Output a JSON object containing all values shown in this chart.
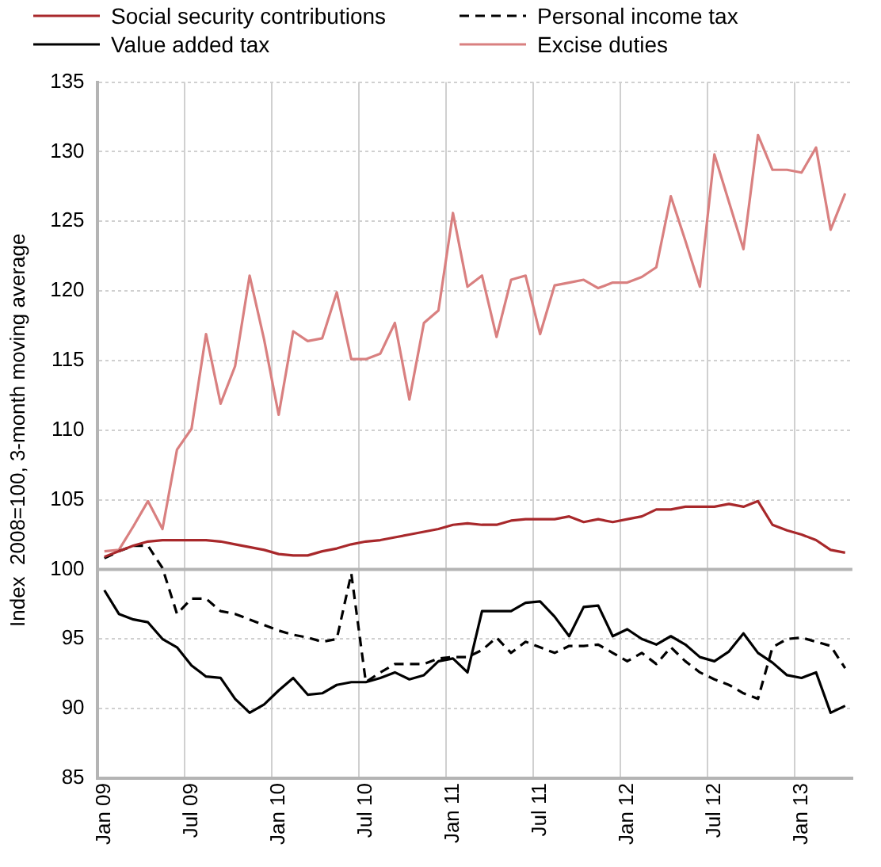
{
  "chart_data": {
    "type": "line",
    "ylabel": "Index  2008=100, 3-month moving average",
    "categories": [
      "Jan 09",
      null,
      null,
      null,
      null,
      null,
      "Jul 09",
      null,
      null,
      null,
      null,
      null,
      "Jan 10",
      null,
      null,
      null,
      null,
      null,
      "Jul 10",
      null,
      null,
      null,
      null,
      null,
      "Jan 11",
      null,
      null,
      null,
      null,
      null,
      "Jul 11",
      null,
      null,
      null,
      null,
      null,
      "Jan 12",
      null,
      null,
      null,
      null,
      null,
      "Jul 12",
      null,
      null,
      null,
      null,
      null,
      "Jan 13",
      null,
      null,
      null
    ],
    "series": [
      {
        "name": "Social security contributions",
        "color": "#a8282b",
        "values": [
          100.9,
          101.3,
          101.7,
          102.0,
          102.1,
          102.1,
          102.1,
          102.1,
          102.0,
          101.8,
          101.6,
          101.4,
          101.1,
          101.0,
          101.0,
          101.3,
          101.5,
          101.8,
          102.0,
          102.1,
          102.3,
          102.5,
          102.7,
          102.9,
          103.2,
          103.3,
          103.2,
          103.2,
          103.5,
          103.6,
          103.6,
          103.6,
          103.8,
          103.4,
          103.6,
          103.4,
          103.6,
          103.8,
          104.3,
          104.3,
          104.5,
          104.5,
          104.5,
          104.7,
          104.5,
          104.9,
          103.2,
          102.8,
          102.5,
          102.1,
          101.4,
          101.2
        ]
      },
      {
        "name": "Value added tax",
        "color": "#000000",
        "values": [
          98.5,
          96.8,
          96.4,
          96.2,
          95.0,
          94.4,
          93.1,
          92.3,
          92.2,
          90.7,
          89.7,
          90.3,
          91.3,
          92.2,
          91.0,
          91.1,
          91.7,
          91.9,
          91.9,
          92.2,
          92.6,
          92.1,
          92.4,
          93.4,
          93.6,
          92.6,
          97.0,
          97.0,
          97.0,
          97.6,
          97.7,
          96.6,
          95.2,
          97.3,
          97.4,
          95.2,
          95.7,
          95.0,
          94.6,
          95.2,
          94.6,
          93.7,
          93.4,
          94.1,
          95.4,
          94.0,
          93.3,
          92.4,
          92.2,
          92.6,
          89.7,
          90.2
        ]
      },
      {
        "name": "Personal income tax",
        "color": "#000000",
        "line_style": "dashed",
        "values": [
          100.8,
          101.3,
          101.7,
          101.7,
          100.1,
          96.8,
          97.9,
          97.9,
          97.0,
          96.8,
          96.4,
          96.0,
          95.6,
          95.3,
          95.1,
          94.8,
          95.0,
          99.7,
          91.9,
          92.6,
          93.2,
          93.2,
          93.2,
          93.6,
          93.7,
          93.7,
          94.2,
          95.1,
          94.0,
          94.8,
          94.4,
          94.0,
          94.5,
          94.5,
          94.6,
          94.0,
          93.4,
          94.0,
          93.2,
          94.4,
          93.4,
          92.6,
          92.1,
          91.7,
          91.1,
          90.7,
          94.4,
          95.0,
          95.1,
          94.8,
          94.5,
          92.9
        ]
      },
      {
        "name": "Excise duties",
        "color": "#d98080",
        "values": [
          101.3,
          101.4,
          103.1,
          104.9,
          102.9,
          108.6,
          110.1,
          116.9,
          111.9,
          114.6,
          121.1,
          116.5,
          111.1,
          117.1,
          116.4,
          116.6,
          119.9,
          115.1,
          115.1,
          115.5,
          117.7,
          112.2,
          117.7,
          118.6,
          125.6,
          120.3,
          121.1,
          116.7,
          120.8,
          121.1,
          116.9,
          120.4,
          120.6,
          120.8,
          120.2,
          120.6,
          120.6,
          121.0,
          121.7,
          126.8,
          123.6,
          120.3,
          129.8,
          126.4,
          123.0,
          131.2,
          128.7,
          128.7,
          128.5,
          130.3,
          124.4,
          127.0
        ]
      }
    ],
    "ylim": [
      85,
      135
    ],
    "yticks": [
      85,
      90,
      95,
      100,
      105,
      110,
      115,
      120,
      125,
      130,
      135
    ],
    "ref_lines": [
      {
        "axis": "y",
        "value": 100,
        "color": "#b4b4b4"
      }
    ],
    "grid": true,
    "legend": "top",
    "marker": "none",
    "line_style": "solid"
  }
}
